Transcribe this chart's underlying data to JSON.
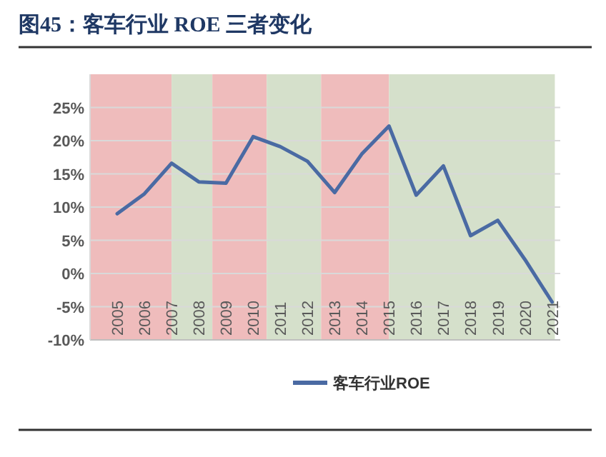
{
  "chart_data": {
    "type": "line",
    "title": "图45：客车行业 ROE 三者变化",
    "x": [
      2005,
      2006,
      2007,
      2008,
      2009,
      2010,
      2011,
      2012,
      2013,
      2014,
      2015,
      2016,
      2017,
      2018,
      2019,
      2020,
      2021
    ],
    "series": [
      {
        "name": "客车行业ROE",
        "color": "#4a6aa3",
        "values": [
          9.0,
          12.0,
          16.6,
          13.8,
          13.6,
          20.6,
          19.1,
          16.9,
          12.2,
          18.0,
          22.2,
          11.8,
          16.2,
          5.7,
          8.0,
          2.1,
          -4.3
        ]
      }
    ],
    "xlim": [
      2004,
      2021.3
    ],
    "xticks": [
      2005,
      2006,
      2007,
      2008,
      2009,
      2010,
      2011,
      2012,
      2013,
      2014,
      2015,
      2016,
      2017,
      2018,
      2019,
      2020,
      2021
    ],
    "ylim": [
      -10,
      30
    ],
    "yticks": [
      {
        "value": -10,
        "label": "-10%"
      },
      {
        "value": -5,
        "label": "-5%"
      },
      {
        "value": 0,
        "label": "0%"
      },
      {
        "value": 5,
        "label": "5%"
      },
      {
        "value": 10,
        "label": "10%"
      },
      {
        "value": 15,
        "label": "15%"
      },
      {
        "value": 20,
        "label": "20%"
      },
      {
        "value": 25,
        "label": "25%"
      }
    ],
    "bands": [
      {
        "axis": "x",
        "from": 2004,
        "to": 2007,
        "color": "#efbcbc"
      },
      {
        "axis": "x",
        "from": 2007,
        "to": 2008.5,
        "color": "#d5e0cb"
      },
      {
        "axis": "x",
        "from": 2008.5,
        "to": 2010.5,
        "color": "#efbcbc"
      },
      {
        "axis": "x",
        "from": 2010.5,
        "to": 2012.5,
        "color": "#d5e0cb"
      },
      {
        "axis": "x",
        "from": 2012.5,
        "to": 2015,
        "color": "#efbcbc"
      },
      {
        "axis": "x",
        "from": 2015,
        "to": 2021.1,
        "color": "#d5e0cb"
      }
    ],
    "grid": "y",
    "legend": "bottom"
  }
}
